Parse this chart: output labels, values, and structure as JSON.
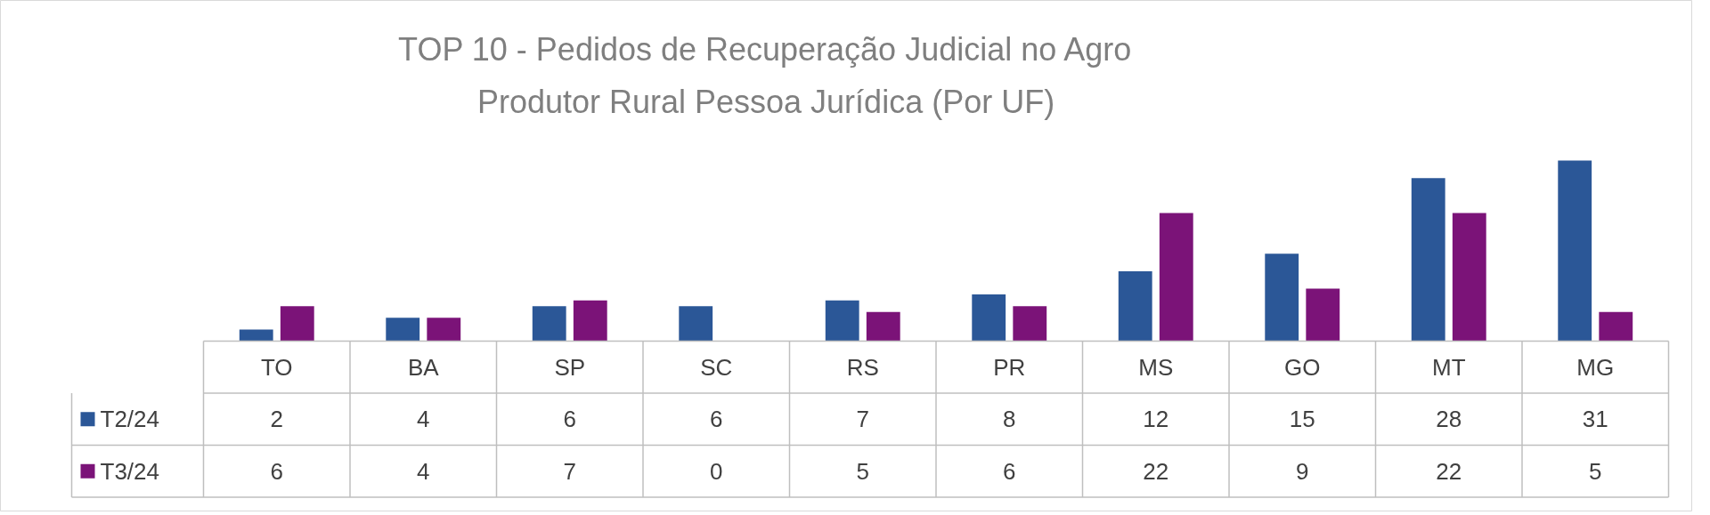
{
  "chart_data": {
    "type": "bar",
    "title": "TOP 10 - Pedidos de Recuperação Judicial no Agro\nProdutor Rural Pessoa Jurídica (Por UF)",
    "categories": [
      "TO",
      "BA",
      "SP",
      "SC",
      "RS",
      "PR",
      "MS",
      "GO",
      "MT",
      "MG"
    ],
    "series": [
      {
        "name": "T2/24",
        "color": "#2b5797",
        "values": [
          2,
          4,
          6,
          6,
          7,
          8,
          12,
          15,
          28,
          31
        ]
      },
      {
        "name": "T3/24",
        "color": "#7b1378",
        "values": [
          6,
          4,
          7,
          0,
          5,
          6,
          22,
          9,
          22,
          5
        ]
      }
    ],
    "data_labels": true,
    "legend": "bottom"
  }
}
